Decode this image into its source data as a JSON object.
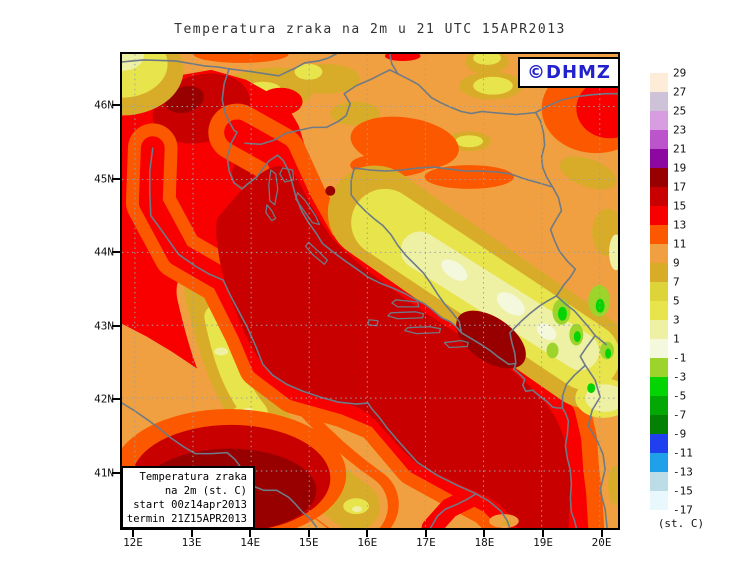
{
  "title": "Temperatura zraka na 2m u 21 UTC 15APR2013",
  "logo": {
    "text": "©DHMZ"
  },
  "axes": {
    "lat_labels": [
      "46N",
      "45N",
      "44N",
      "43N",
      "42N",
      "41N"
    ],
    "lon_labels": [
      "12E",
      "13E",
      "14E",
      "15E",
      "16E",
      "17E",
      "18E",
      "19E",
      "20E"
    ]
  },
  "colorbar": {
    "unit": "(st. C)",
    "tick_labels": [
      "29",
      "27",
      "25",
      "23",
      "21",
      "19",
      "17",
      "15",
      "13",
      "11",
      "9",
      "7",
      "5",
      "3",
      "1",
      "-1",
      "-3",
      "-5",
      "-7",
      "-9",
      "-11",
      "-13",
      "-15",
      "-17"
    ],
    "colors": [
      "#fcecd8",
      "#cec2d8",
      "#d89ce0",
      "#bc54cc",
      "#8c08a0",
      "#980000",
      "#c80000",
      "#f80000",
      "#fc5800",
      "#f0a040",
      "#d8ac28",
      "#dcd438",
      "#e8e44c",
      "#eef0a4",
      "#f4f8dc",
      "#9cd42c",
      "#04d404",
      "#04a804",
      "#048004",
      "#2040f0",
      "#20a0e8",
      "#bcdce8",
      "#e8f8fc"
    ]
  },
  "legend": {
    "lines": [
      "Temperatura zraka",
      "na 2m (st. C)",
      "start 00z14apr2013",
      "termin 21Z15APR2013"
    ]
  }
}
